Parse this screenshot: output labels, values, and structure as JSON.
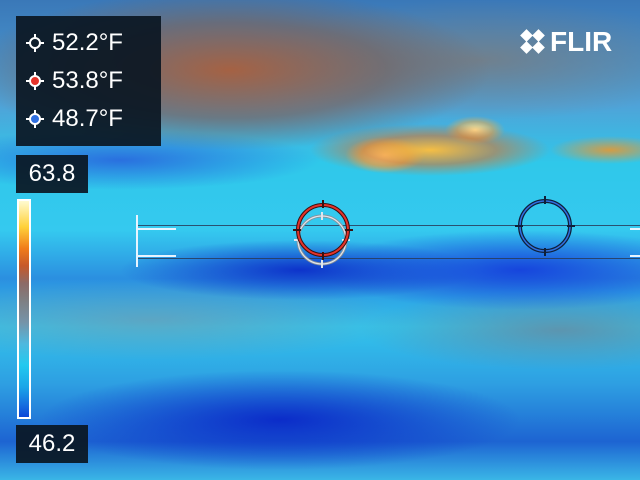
{
  "readings": [
    {
      "marker": "center-spot",
      "value": "52.2°F",
      "color": "#ffffff"
    },
    {
      "marker": "hot-spot",
      "value": "53.8°F",
      "color": "#e5332a"
    },
    {
      "marker": "cold-spot",
      "value": "48.7°F",
      "color": "#2f6fe0"
    }
  ],
  "scale": {
    "max": "63.8",
    "min": "46.2"
  },
  "logo": {
    "text": "FLIR"
  },
  "colors": {
    "panel_bg": "#0a1622",
    "hot_marker": "#e5332a",
    "cold_marker": "#2f6fe0",
    "center_marker": "#ffffff"
  }
}
